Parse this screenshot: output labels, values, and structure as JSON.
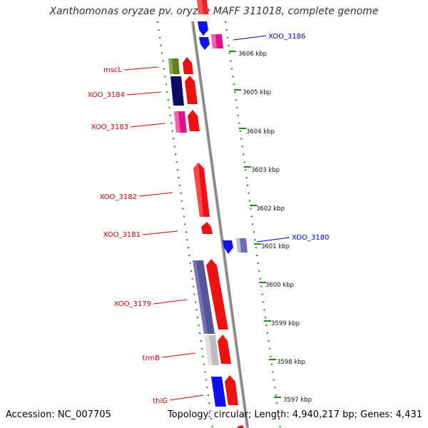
{
  "title": "Xanthomonas oryzae pv. oryzae MAFF 311018, complete genome",
  "accession": "Accession: NC_007705",
  "topology": "Topology: circular; Length: 4,940,217 bp; Genes: 4,431",
  "colors": {
    "forward_label": "#cc0000",
    "reverse_label": "#0000cc",
    "axis": "#999999",
    "dash": "#228b22"
  },
  "ticks": [
    "3606 kbp",
    "3605 kbp",
    "3604 kbp",
    "3603 kbp",
    "3602 kbp",
    "3601 kbp",
    "3600 kbp",
    "3599 kbp",
    "3598 kbp",
    "3597 kbp"
  ],
  "left_labels": [
    "mscL",
    "XOO_3184",
    "XOO_3183",
    "XOO_3182",
    "XOO_3181",
    "XOO_3179",
    "trmB",
    "thiG"
  ],
  "right_labels": [
    "XOO_3186",
    "XOO_3180"
  ]
}
